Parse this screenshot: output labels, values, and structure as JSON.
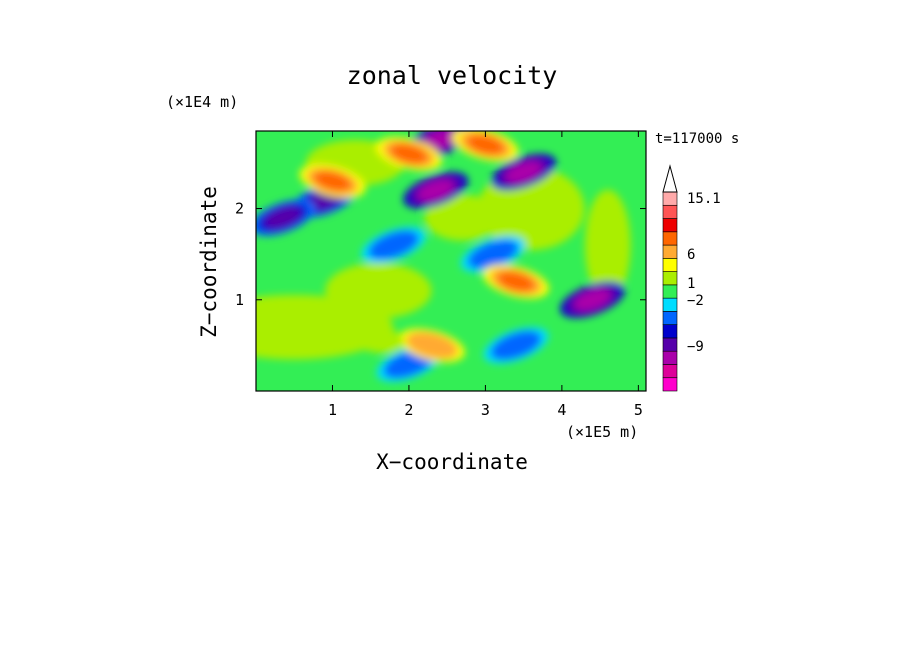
{
  "chart_data": {
    "type": "heatmap",
    "title": "zonal velocity",
    "xlabel": "X−coordinate",
    "ylabel": "Z−coordinate",
    "x_unit": "(×1E5 m)",
    "y_unit": "(×1E4 m)",
    "time_label": "t=117000 s",
    "xlim": [
      0,
      5.1
    ],
    "ylim": [
      0,
      2.85
    ],
    "x_ticks": [
      "1",
      "2",
      "3",
      "4",
      "5"
    ],
    "y_ticks": [
      "1",
      "2"
    ],
    "colorbar": {
      "labels": [
        "15.1",
        "6",
        "1",
        "−2",
        "−9"
      ],
      "levels": [
        -15,
        -12,
        -9,
        -6,
        -4,
        -2,
        -1,
        0,
        1,
        2,
        4,
        6,
        9,
        12,
        15.1
      ],
      "colors": [
        "#ff00cc",
        "#dd0099",
        "#aa00aa",
        "#5500aa",
        "#0000cc",
        "#0066ff",
        "#00ddff",
        "#33ee55",
        "#aaee00",
        "#ffff00",
        "#ffaa33",
        "#ff6600",
        "#ee0000",
        "#ff5555",
        "#ffaaaa"
      ],
      "extend": "max-triangle"
    },
    "features": [
      {
        "x": 2.4,
        "z": 2.75,
        "value": -9
      },
      {
        "x": 2.35,
        "z": 2.2,
        "value": -9
      },
      {
        "x": 3.5,
        "z": 2.4,
        "value": -9
      },
      {
        "x": 4.4,
        "z": 1.0,
        "value": -9
      },
      {
        "x": 0.9,
        "z": 2.1,
        "value": -6
      },
      {
        "x": 0.35,
        "z": 1.9,
        "value": -6
      },
      {
        "x": 1.8,
        "z": 1.6,
        "value": -2
      },
      {
        "x": 3.1,
        "z": 1.5,
        "value": -2
      },
      {
        "x": 2.0,
        "z": 0.3,
        "value": -2
      },
      {
        "x": 3.4,
        "z": 0.5,
        "value": -2
      },
      {
        "x": 1.0,
        "z": 2.3,
        "value": 6
      },
      {
        "x": 2.0,
        "z": 2.6,
        "value": 6
      },
      {
        "x": 3.0,
        "z": 2.7,
        "value": 6
      },
      {
        "x": 3.4,
        "z": 1.2,
        "value": 6
      },
      {
        "x": 2.3,
        "z": 0.5,
        "value": 4
      },
      {
        "x": 1.5,
        "z": 0.6,
        "value": 1
      }
    ]
  }
}
